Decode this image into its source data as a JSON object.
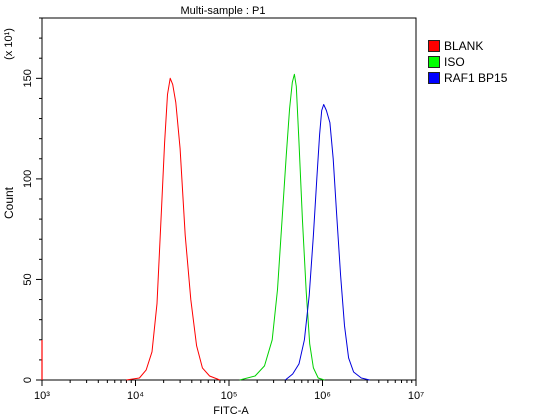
{
  "chart_data": {
    "type": "line",
    "title": "Multi-sample : P1",
    "xlabel": "FITC-A",
    "ylabel": "Count",
    "y_multiplier": "(x 10¹)",
    "x_scale": "log",
    "xlim": [
      1000,
      10000000
    ],
    "ylim": [
      0,
      180
    ],
    "x_ticks": [
      {
        "value": 1000,
        "label": "10³"
      },
      {
        "value": 10000,
        "label": "10⁴"
      },
      {
        "value": 100000,
        "label": "10⁵"
      },
      {
        "value": 1000000,
        "label": "10⁶"
      },
      {
        "value": 10000000,
        "label": "10⁷"
      }
    ],
    "y_ticks": [
      0,
      50,
      100,
      150
    ],
    "legend_position": "right",
    "series": [
      {
        "name": "BLANK",
        "color": "#ff0000",
        "points": [
          [
            8000,
            0
          ],
          [
            11000,
            1
          ],
          [
            13000,
            5
          ],
          [
            15000,
            14
          ],
          [
            17000,
            38
          ],
          [
            19000,
            86
          ],
          [
            20500,
            118
          ],
          [
            22000,
            142
          ],
          [
            23500,
            150
          ],
          [
            25000,
            147
          ],
          [
            27000,
            138
          ],
          [
            30000,
            115
          ],
          [
            34000,
            72
          ],
          [
            39000,
            40
          ],
          [
            45000,
            17
          ],
          [
            52000,
            6
          ],
          [
            62000,
            2
          ],
          [
            80000,
            0
          ]
        ]
      },
      {
        "name": "ISO",
        "color": "#00d200",
        "points": [
          [
            130000,
            0
          ],
          [
            190000,
            2
          ],
          [
            240000,
            7
          ],
          [
            290000,
            20
          ],
          [
            330000,
            45
          ],
          [
            370000,
            80
          ],
          [
            410000,
            112
          ],
          [
            445000,
            135
          ],
          [
            475000,
            148
          ],
          [
            500000,
            152
          ],
          [
            525000,
            146
          ],
          [
            560000,
            118
          ],
          [
            610000,
            80
          ],
          [
            670000,
            44
          ],
          [
            730000,
            18
          ],
          [
            800000,
            6
          ],
          [
            900000,
            1
          ],
          [
            1050000,
            0
          ]
        ]
      },
      {
        "name": "RAF1 BP15",
        "color": "#0000dd",
        "points": [
          [
            400000,
            0
          ],
          [
            480000,
            3
          ],
          [
            560000,
            8
          ],
          [
            640000,
            20
          ],
          [
            720000,
            42
          ],
          [
            800000,
            72
          ],
          [
            870000,
            100
          ],
          [
            930000,
            122
          ],
          [
            980000,
            134
          ],
          [
            1030000,
            137
          ],
          [
            1100000,
            134
          ],
          [
            1200000,
            128
          ],
          [
            1300000,
            110
          ],
          [
            1420000,
            82
          ],
          [
            1560000,
            52
          ],
          [
            1720000,
            27
          ],
          [
            1900000,
            11
          ],
          [
            2150000,
            4
          ],
          [
            2600000,
            1
          ],
          [
            3200000,
            0
          ]
        ]
      }
    ]
  }
}
